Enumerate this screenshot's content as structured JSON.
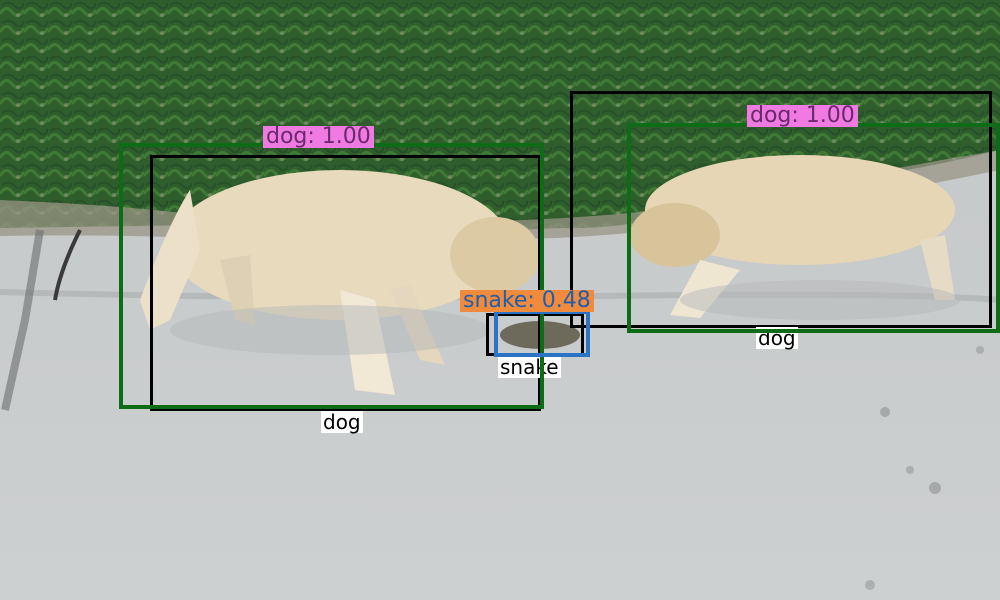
{
  "detections": [
    {
      "label": "dog:  1.00",
      "class": "dog",
      "box_color": "#0e6b16",
      "tag_bg": "#ef7ae2",
      "tag_fg": "#6b2a6b"
    },
    {
      "label": "dog:  1.00",
      "class": "dog",
      "box_color": "#0e6b16",
      "tag_bg": "#ef7ae2",
      "tag_fg": "#6b2a6b"
    },
    {
      "label": "snake:  0.48",
      "class": "snake",
      "box_color": "#2b73c4",
      "tag_bg": "#f08a3c",
      "tag_fg": "#1f5fae"
    }
  ],
  "ground_truth": [
    {
      "label": "dog",
      "box_color": "#000000"
    },
    {
      "label": "dog",
      "box_color": "#000000"
    },
    {
      "label": "snake",
      "box_color": "#000000"
    }
  ],
  "colors": {
    "grass": "#2f5f2a",
    "pavement": "#c8cbcb",
    "dog_fur": "#e6d6b6"
  }
}
